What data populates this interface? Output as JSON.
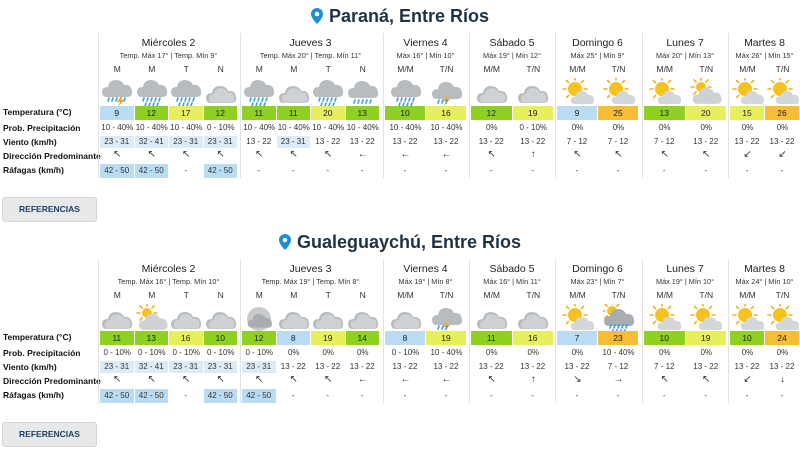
{
  "colors": {
    "cold": "#b9dcf3",
    "green_dark": "#8fd11f",
    "green_light": "#c2e84e",
    "yellow": "#e7f05a",
    "orange": "#f7be35",
    "wind_bg": "#dcebf6",
    "gust_bg": "#b9dcf3"
  },
  "row_labels": {
    "temperature": "Temperatura (°C)",
    "precip": "Prob. Precipitación",
    "wind": "Viento (km/h)",
    "direction": "Dirección Predominante",
    "gusts": "Ráfagas (km/h)"
  },
  "sections": [
    {
      "title": "Paraná, Entre Ríos",
      "button": "REFERENCIAS",
      "days": [
        {
          "name": "Miércoles 2",
          "minmax": "Temp. Máx 17° | Temp. Mín 9°",
          "periods": [
            {
              "label": "M",
              "icon": "storm-rain-icon",
              "temp": "9",
              "tc": "cold",
              "precip": "10 - 40%",
              "wind": "23 - 31",
              "wb": true,
              "dir": "↖",
              "gust": "42 - 50"
            },
            {
              "label": "M",
              "icon": "heavy-rain-icon",
              "temp": "12",
              "tc": "green_dark",
              "precip": "10 - 40%",
              "wind": "32 - 41",
              "wb": true,
              "dir": "↖",
              "gust": "42 - 50"
            },
            {
              "label": "T",
              "icon": "heavy-rain-icon",
              "temp": "17",
              "tc": "yellow",
              "precip": "10 - 40%",
              "wind": "23 - 31",
              "wb": true,
              "dir": "↖",
              "gust": "-"
            },
            {
              "label": "N",
              "icon": "cloud-icon",
              "temp": "12",
              "tc": "green_dark",
              "precip": "0 - 10%",
              "wind": "23 - 31",
              "wb": true,
              "dir": "↖",
              "gust": "42 - 50"
            }
          ]
        },
        {
          "name": "Jueves 3",
          "minmax": "Temp. Máx 20° | Temp. Mín 11°",
          "periods": [
            {
              "label": "M",
              "icon": "heavy-rain-icon",
              "temp": "11",
              "tc": "green_dark",
              "precip": "10 - 40%",
              "wind": "13 - 22",
              "wb": false,
              "dir": "↖",
              "gust": "-"
            },
            {
              "label": "M",
              "icon": "cloud-icon",
              "temp": "11",
              "tc": "green_dark",
              "precip": "10 - 40%",
              "wind": "23 - 31",
              "wb": true,
              "dir": "↖",
              "gust": "-"
            },
            {
              "label": "T",
              "icon": "heavy-rain-icon",
              "temp": "20",
              "tc": "yellow",
              "precip": "10 - 40%",
              "wind": "13 - 22",
              "wb": false,
              "dir": "↖",
              "gust": "-"
            },
            {
              "label": "N",
              "icon": "rain-icon",
              "temp": "13",
              "tc": "green_dark",
              "precip": "10 - 40%",
              "wind": "13 - 22",
              "wb": false,
              "dir": "←",
              "gust": "-"
            }
          ]
        },
        {
          "name": "Viernes 4",
          "minmax": "Máx 16° | Mín 10°",
          "periods": [
            {
              "label": "M/M",
              "icon": "heavy-rain-icon",
              "temp": "10",
              "tc": "green_dark",
              "precip": "10 - 40%",
              "wind": "13 - 22",
              "wb": false,
              "dir": "←",
              "gust": "-"
            },
            {
              "label": "T/N",
              "icon": "storm-icon",
              "temp": "16",
              "tc": "yellow",
              "precip": "10 - 40%",
              "wind": "13 - 22",
              "wb": false,
              "dir": "←",
              "gust": "-"
            }
          ]
        },
        {
          "name": "Sábado 5",
          "minmax": "Máx 19° | Mín 12°",
          "periods": [
            {
              "label": "M/M",
              "icon": "cloud-icon",
              "temp": "12",
              "tc": "green_dark",
              "precip": "0%",
              "wind": "13 - 22",
              "wb": false,
              "dir": "↖",
              "gust": "-"
            },
            {
              "label": "T/N",
              "icon": "cloud-icon",
              "temp": "19",
              "tc": "yellow",
              "precip": "0 - 10%",
              "wind": "13 - 22",
              "wb": false,
              "dir": "↑",
              "gust": "-"
            }
          ]
        },
        {
          "name": "Domingo 6",
          "minmax": "Máx 25° | Mín 9°",
          "periods": [
            {
              "label": "M/M",
              "icon": "partly-sunny-icon",
              "temp": "9",
              "tc": "cold",
              "precip": "0%",
              "wind": "7 - 12",
              "wb": false,
              "dir": "↖",
              "gust": "-"
            },
            {
              "label": "T/N",
              "icon": "partly-sunny-icon",
              "temp": "25",
              "tc": "orange",
              "precip": "0%",
              "wind": "7 - 12",
              "wb": false,
              "dir": "↖",
              "gust": "-"
            }
          ]
        },
        {
          "name": "Lunes 7",
          "minmax": "Máx 20° | Mín 13°",
          "periods": [
            {
              "label": "M/M",
              "icon": "partly-sunny-icon",
              "temp": "13",
              "tc": "green_dark",
              "precip": "0%",
              "wind": "7 - 12",
              "wb": false,
              "dir": "↖",
              "gust": "-"
            },
            {
              "label": "T/N",
              "icon": "partly-cloudy-icon",
              "temp": "20",
              "tc": "yellow",
              "precip": "0%",
              "wind": "13 - 22",
              "wb": false,
              "dir": "↖",
              "gust": "-"
            }
          ]
        },
        {
          "name": "Martes 8",
          "minmax": "Máx 26° | Mín 15°",
          "periods": [
            {
              "label": "M/M",
              "icon": "partly-sunny-icon",
              "temp": "15",
              "tc": "yellow",
              "precip": "0%",
              "wind": "13 - 22",
              "wb": false,
              "dir": "↙",
              "gust": "-"
            },
            {
              "label": "T/N",
              "icon": "partly-sunny-icon",
              "temp": "26",
              "tc": "orange",
              "precip": "0%",
              "wind": "13 - 22",
              "wb": false,
              "dir": "↙",
              "gust": "-"
            }
          ]
        }
      ]
    },
    {
      "title": "Gualeguaychú, Entre Ríos",
      "button": "REFERENCIAS",
      "days": [
        {
          "name": "Miércoles 2",
          "minmax": "Temp. Máx 16° | Temp. Mín 10°",
          "periods": [
            {
              "label": "M",
              "icon": "cloud-icon",
              "temp": "11",
              "tc": "green_dark",
              "precip": "0 - 10%",
              "wind": "23 - 31",
              "wb": true,
              "dir": "↖",
              "gust": "42 - 50"
            },
            {
              "label": "M",
              "icon": "partly-cloudy-icon",
              "temp": "13",
              "tc": "green_dark",
              "precip": "0 - 10%",
              "wind": "32 - 41",
              "wb": true,
              "dir": "↖",
              "gust": "42 - 50"
            },
            {
              "label": "T",
              "icon": "cloud-icon",
              "temp": "16",
              "tc": "yellow",
              "precip": "0 - 10%",
              "wind": "23 - 31",
              "wb": true,
              "dir": "↖",
              "gust": "-"
            },
            {
              "label": "N",
              "icon": "cloud-icon",
              "temp": "10",
              "tc": "green_dark",
              "precip": "0 - 10%",
              "wind": "23 - 31",
              "wb": true,
              "dir": "↖",
              "gust": "42 - 50"
            }
          ]
        },
        {
          "name": "Jueves 3",
          "minmax": "Temp. Máx 19° | Temp. Mín 8°",
          "periods": [
            {
              "label": "M",
              "icon": "fog-icon",
              "temp": "12",
              "tc": "green_dark",
              "precip": "0 - 10%",
              "wind": "23 - 31",
              "wb": true,
              "dir": "↖",
              "gust": "42 - 50"
            },
            {
              "label": "M",
              "icon": "cloud-icon",
              "temp": "8",
              "tc": "cold",
              "precip": "0%",
              "wind": "13 - 22",
              "wb": false,
              "dir": "↖",
              "gust": "-"
            },
            {
              "label": "T",
              "icon": "cloud-icon",
              "temp": "19",
              "tc": "yellow",
              "precip": "0%",
              "wind": "13 - 22",
              "wb": false,
              "dir": "↖",
              "gust": "-"
            },
            {
              "label": "N",
              "icon": "cloud-icon",
              "temp": "14",
              "tc": "green_dark",
              "precip": "0%",
              "wind": "13 - 22",
              "wb": false,
              "dir": "←",
              "gust": "-"
            }
          ]
        },
        {
          "name": "Viernes 4",
          "minmax": "Máx 19° | Mín 8°",
          "periods": [
            {
              "label": "M/M",
              "icon": "cloud-icon",
              "temp": "8",
              "tc": "cold",
              "precip": "0 - 10%",
              "wind": "13 - 22",
              "wb": false,
              "dir": "←",
              "gust": "-"
            },
            {
              "label": "T/N",
              "icon": "storm-icon",
              "temp": "19",
              "tc": "yellow",
              "precip": "10 - 40%",
              "wind": "13 - 22",
              "wb": false,
              "dir": "←",
              "gust": "-"
            }
          ]
        },
        {
          "name": "Sábado 5",
          "minmax": "Máx 16° | Mín 11°",
          "periods": [
            {
              "label": "M/M",
              "icon": "cloud-icon",
              "temp": "11",
              "tc": "green_dark",
              "precip": "0%",
              "wind": "13 - 22",
              "wb": false,
              "dir": "↖",
              "gust": "-"
            },
            {
              "label": "T/N",
              "icon": "cloud-icon",
              "temp": "16",
              "tc": "yellow",
              "precip": "0%",
              "wind": "13 - 22",
              "wb": false,
              "dir": "↑",
              "gust": "-"
            }
          ]
        },
        {
          "name": "Domingo 6",
          "minmax": "Máx 23° | Mín 7°",
          "periods": [
            {
              "label": "M/M",
              "icon": "partly-sunny-icon",
              "temp": "7",
              "tc": "cold",
              "precip": "0%",
              "wind": "13 - 22",
              "wb": false,
              "dir": "↘",
              "gust": "-"
            },
            {
              "label": "T/N",
              "icon": "sun-rain-icon",
              "temp": "23",
              "tc": "orange",
              "precip": "10 - 40%",
              "wind": "7 - 12",
              "wb": false,
              "dir": "→",
              "gust": "-"
            }
          ]
        },
        {
          "name": "Lunes 7",
          "minmax": "Máx 19° | Mín 10°",
          "periods": [
            {
              "label": "M/M",
              "icon": "partly-sunny-icon",
              "temp": "10",
              "tc": "green_dark",
              "precip": "0%",
              "wind": "7 - 12",
              "wb": false,
              "dir": "↖",
              "gust": "-"
            },
            {
              "label": "T/N",
              "icon": "partly-sunny-icon",
              "temp": "19",
              "tc": "yellow",
              "precip": "0%",
              "wind": "13 - 22",
              "wb": false,
              "dir": "↖",
              "gust": "-"
            }
          ]
        },
        {
          "name": "Martes 8",
          "minmax": "Máx 24° | Mín 10°",
          "periods": [
            {
              "label": "M/M",
              "icon": "partly-sunny-icon",
              "temp": "10",
              "tc": "green_dark",
              "precip": "0%",
              "wind": "13 - 22",
              "wb": false,
              "dir": "↙",
              "gust": "-"
            },
            {
              "label": "T/N",
              "icon": "partly-sunny-icon",
              "temp": "24",
              "tc": "orange",
              "precip": "0%",
              "wind": "13 - 22",
              "wb": false,
              "dir": "↓",
              "gust": "-"
            }
          ]
        }
      ]
    }
  ]
}
